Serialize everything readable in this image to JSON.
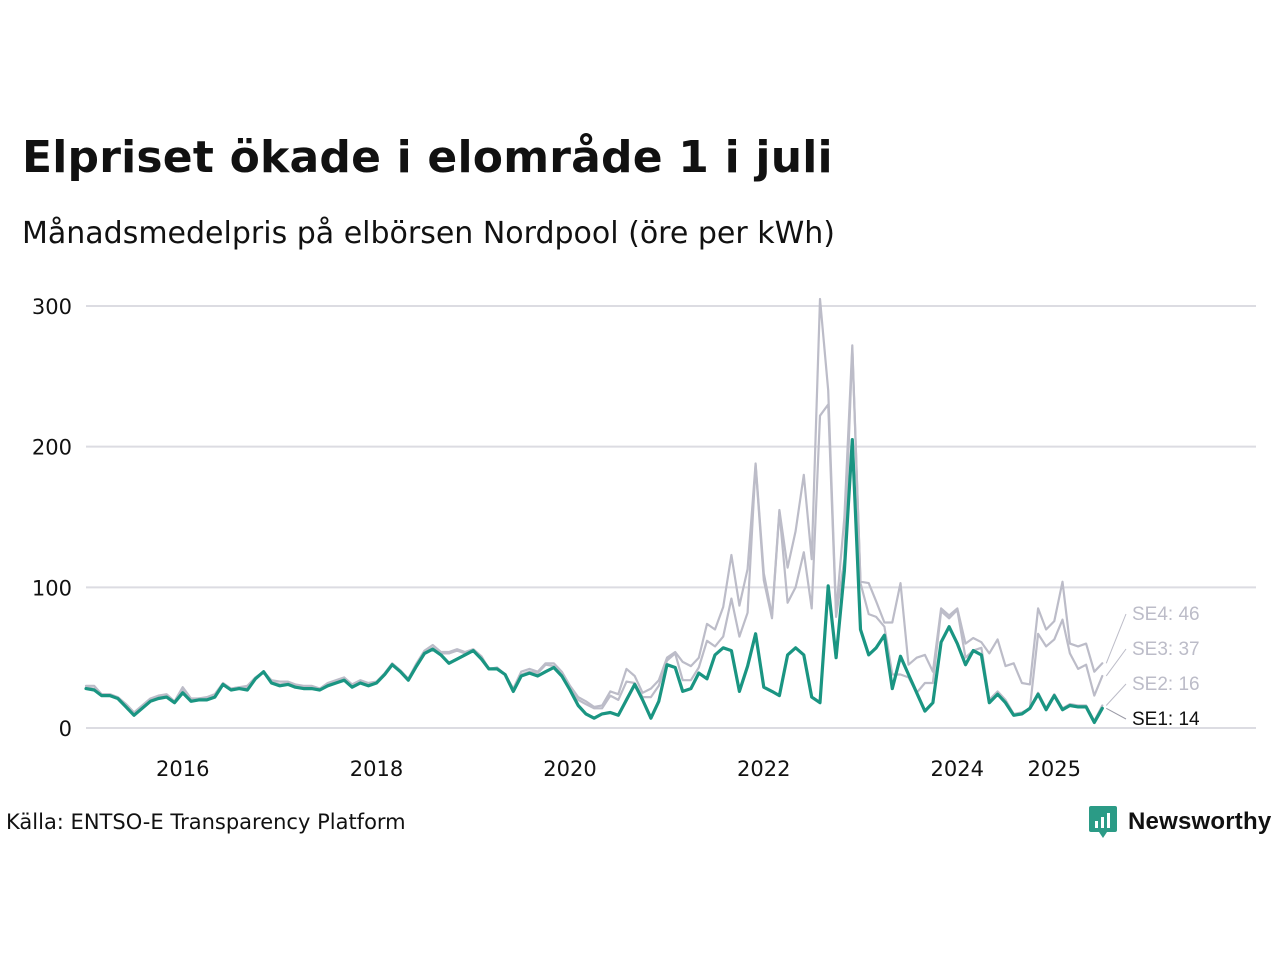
{
  "header": {
    "title": "Elpriset ökade i elområde 1 i juli",
    "subtitle": "Månadsmedelpris på elbörsen Nordpool (öre per kWh)"
  },
  "footer": {
    "source": "Källa: ENTSO-E Transparency Platform",
    "brand": "Newsworthy"
  },
  "colors": {
    "highlight": "#1a9582",
    "context": "#bcbcc8",
    "grid": "#dcdce2",
    "text": "#111111",
    "brand": "#2b9b86"
  },
  "chart_data": {
    "type": "line",
    "title": "Elpriset ökade i elområde 1 i juli",
    "subtitle": "Månadsmedelpris på elbörsen Nordpool (öre per kWh)",
    "xlabel": "",
    "ylabel": "",
    "ylim": [
      0,
      300
    ],
    "yticks": [
      0,
      100,
      200,
      300
    ],
    "xticks": [
      {
        "date": "2016-01-01",
        "label": "2016"
      },
      {
        "date": "2018-01-01",
        "label": "2018"
      },
      {
        "date": "2020-01-01",
        "label": "2020"
      },
      {
        "date": "2022-01-01",
        "label": "2022"
      },
      {
        "date": "2024-01-01",
        "label": "2024"
      },
      {
        "date": "2025-01-01",
        "label": "2025"
      }
    ],
    "xlim": [
      "2015-01-01",
      "2027-02-01"
    ],
    "grid": "horizontal",
    "highlight_series": "SE1",
    "end_labels": [
      {
        "series": "SE4",
        "text": "SE4: 46"
      },
      {
        "series": "SE3",
        "text": "SE3: 37"
      },
      {
        "series": "SE2",
        "text": "SE2: 16"
      },
      {
        "series": "SE1",
        "text": "SE1: 14"
      }
    ],
    "series": [
      {
        "name": "SE1",
        "start": "2015-01-01",
        "values": [
          28,
          27,
          23,
          23,
          21,
          15,
          9,
          14,
          19,
          21,
          22,
          18,
          25,
          19,
          20,
          20,
          22,
          31,
          27,
          28,
          27,
          35,
          40,
          32,
          30,
          31,
          29,
          28,
          28,
          27,
          30,
          32,
          34,
          29,
          32,
          30,
          32,
          38,
          45,
          40,
          34,
          44,
          53,
          56,
          52,
          46,
          49,
          52,
          55,
          49,
          42,
          42,
          38,
          26,
          37,
          39,
          37,
          40,
          43,
          37,
          27,
          16,
          10,
          7,
          10,
          11,
          9,
          20,
          31,
          20,
          7,
          19,
          45,
          43,
          26,
          28,
          39,
          35,
          52,
          57,
          55,
          26,
          44,
          67,
          29,
          26,
          23,
          52,
          57,
          52,
          22,
          18,
          101,
          50,
          112,
          205,
          70,
          52,
          57,
          66,
          28,
          51,
          38,
          25,
          12,
          18,
          61,
          72,
          60,
          45,
          55,
          52,
          18,
          24,
          18,
          9,
          10,
          14,
          24,
          13,
          23,
          13,
          16,
          15,
          15,
          4,
          14
        ]
      },
      {
        "name": "SE2",
        "start": "2015-01-01",
        "values": [
          28,
          27,
          23,
          23,
          21,
          15,
          9,
          14,
          19,
          21,
          22,
          18,
          25,
          19,
          20,
          20,
          22,
          31,
          27,
          28,
          27,
          35,
          40,
          32,
          30,
          31,
          29,
          28,
          28,
          27,
          30,
          32,
          34,
          29,
          32,
          30,
          32,
          38,
          45,
          40,
          34,
          44,
          53,
          56,
          52,
          46,
          49,
          52,
          55,
          49,
          42,
          42,
          38,
          26,
          37,
          39,
          37,
          40,
          43,
          37,
          27,
          16,
          10,
          7,
          10,
          11,
          9,
          21,
          31,
          20,
          7,
          19,
          45,
          43,
          26,
          28,
          39,
          35,
          52,
          57,
          55,
          26,
          44,
          67,
          29,
          26,
          23,
          52,
          57,
          52,
          22,
          18,
          101,
          50,
          112,
          205,
          70,
          52,
          57,
          66,
          28,
          51,
          38,
          25,
          12,
          18,
          61,
          72,
          60,
          45,
          55,
          52,
          18,
          24,
          18,
          9,
          10,
          14,
          25,
          14,
          24,
          14,
          17,
          16,
          16,
          5,
          16
        ]
      },
      {
        "name": "SE3",
        "start": "2015-01-01",
        "values": [
          29,
          28,
          24,
          23,
          21,
          17,
          11,
          15,
          20,
          22,
          23,
          18,
          27,
          20,
          21,
          21,
          23,
          31,
          28,
          29,
          29,
          35,
          40,
          33,
          31,
          32,
          30,
          29,
          29,
          28,
          31,
          33,
          34,
          30,
          33,
          31,
          32,
          38,
          45,
          40,
          35,
          45,
          54,
          57,
          53,
          53,
          55,
          53,
          55,
          50,
          42,
          42,
          38,
          27,
          38,
          40,
          39,
          45,
          44,
          38,
          28,
          20,
          17,
          14,
          14,
          23,
          20,
          33,
          32,
          22,
          22,
          30,
          48,
          53,
          34,
          34,
          43,
          62,
          58,
          65,
          92,
          65,
          82,
          187,
          105,
          78,
          154,
          89,
          100,
          125,
          85,
          222,
          230,
          79,
          120,
          270,
          103,
          81,
          79,
          72,
          38,
          38,
          36,
          25,
          32,
          32,
          83,
          78,
          84,
          50,
          55,
          57,
          20,
          26,
          20,
          10,
          11,
          14,
          67,
          58,
          63,
          77,
          53,
          42,
          45,
          23,
          37
        ]
      },
      {
        "name": "SE4",
        "start": "2015-01-01",
        "values": [
          30,
          30,
          24,
          24,
          22,
          17,
          11,
          16,
          21,
          23,
          24,
          19,
          29,
          21,
          21,
          22,
          24,
          32,
          28,
          29,
          30,
          36,
          40,
          34,
          33,
          33,
          31,
          30,
          30,
          28,
          32,
          34,
          36,
          31,
          34,
          32,
          33,
          39,
          46,
          41,
          35,
          46,
          55,
          59,
          54,
          54,
          56,
          54,
          56,
          51,
          42,
          43,
          38,
          28,
          40,
          42,
          40,
          46,
          46,
          40,
          30,
          22,
          19,
          15,
          16,
          26,
          24,
          42,
          37,
          25,
          28,
          34,
          50,
          54,
          47,
          44,
          50,
          74,
          70,
          86,
          123,
          87,
          113,
          188,
          110,
          80,
          155,
          114,
          140,
          180,
          120,
          305,
          240,
          82,
          150,
          272,
          104,
          103,
          90,
          75,
          75,
          103,
          45,
          50,
          52,
          40,
          85,
          80,
          85,
          60,
          64,
          61,
          53,
          63,
          44,
          46,
          32,
          31,
          85,
          70,
          76,
          104,
          60,
          58,
          60,
          40,
          46
        ]
      }
    ]
  }
}
